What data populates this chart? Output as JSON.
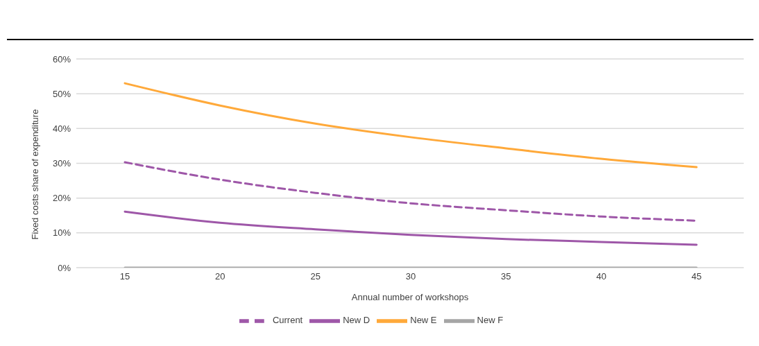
{
  "chart_data": {
    "type": "line",
    "xlabel": "Annual number of workshops",
    "ylabel": "Fixed costs share of expenditure",
    "categories": [
      "15",
      "20",
      "25",
      "30",
      "35",
      "40",
      "45"
    ],
    "series": [
      {
        "name": "Current",
        "color": "#9e57a8",
        "line_style": "dashed",
        "values": [
          30.3,
          25.3,
          21.5,
          18.5,
          16.5,
          14.7,
          13.5
        ]
      },
      {
        "name": "New D",
        "color": "#9e57a8",
        "line_style": "solid",
        "values": [
          16.1,
          12.9,
          11,
          9.4,
          8.2,
          7.4,
          6.6
        ]
      },
      {
        "name": "New E",
        "color": "#ffa93a",
        "line_style": "solid",
        "values": [
          53,
          46.6,
          41.4,
          37.5,
          34.3,
          31.3,
          28.9
        ]
      },
      {
        "name": "New F",
        "color": "#a5a5a5",
        "line_style": "solid",
        "values": [
          0,
          0,
          0,
          0,
          0,
          0,
          0
        ]
      }
    ],
    "ylim": [
      0,
      60
    ],
    "yticks": [
      {
        "value": 0,
        "label": "0%"
      },
      {
        "value": 10,
        "label": "10%"
      },
      {
        "value": 20,
        "label": "20%"
      },
      {
        "value": 30,
        "label": "30%"
      },
      {
        "value": 40,
        "label": "40%"
      },
      {
        "value": 50,
        "label": "50%"
      },
      {
        "value": 60,
        "label": "60%"
      }
    ],
    "grid": "y",
    "legend": "bottom",
    "marker": "none"
  }
}
